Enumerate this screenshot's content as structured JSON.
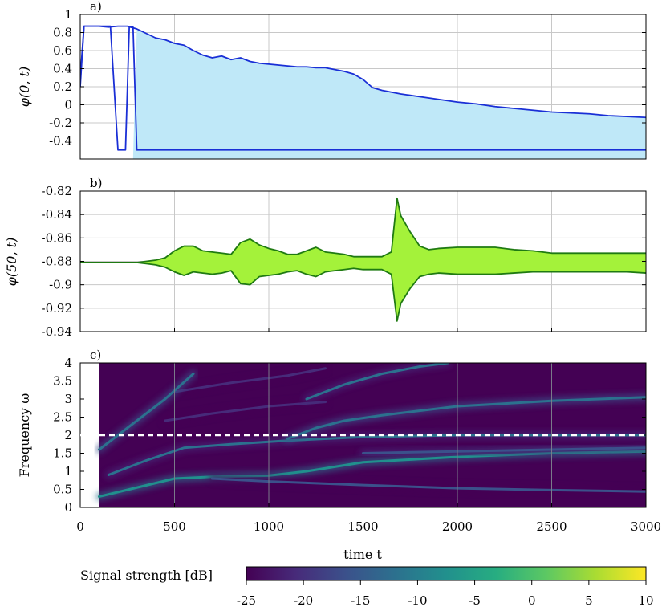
{
  "chart_data": [
    {
      "type": "area",
      "panel_label": "a)",
      "ylabel": "φ(0, t)",
      "xlim": [
        0,
        3000
      ],
      "ylim": [
        -0.5,
        1.0
      ],
      "yticks": [
        "1",
        "0.8",
        "0.6",
        "0.4",
        "0.2",
        "0",
        "-0.2",
        "-0.4"
      ],
      "ytick_values": [
        1,
        0.8,
        0.6,
        0.4,
        0.2,
        0,
        -0.2,
        -0.4
      ],
      "grid": true,
      "colors": {
        "line": "#1a2fd6",
        "fill": "#bfe8f8"
      },
      "series": [
        {
          "kind": "envelope-upper",
          "x": [
            0,
            20,
            50,
            100,
            150,
            200,
            250,
            300,
            350,
            400,
            450,
            500,
            550,
            600,
            650,
            700,
            750,
            800,
            850,
            900,
            950,
            1000,
            1050,
            1100,
            1150,
            1200,
            1250,
            1300,
            1350,
            1400,
            1450,
            1500,
            1550,
            1600,
            1700,
            1800,
            1900,
            2000,
            2100,
            2200,
            2300,
            2400,
            2500,
            2600,
            2700,
            2800,
            2900,
            3000
          ],
          "y": [
            0.3,
            0.87,
            0.87,
            0.87,
            0.86,
            0.87,
            0.87,
            0.84,
            0.79,
            0.74,
            0.72,
            0.68,
            0.66,
            0.6,
            0.55,
            0.52,
            0.54,
            0.5,
            0.52,
            0.48,
            0.46,
            0.45,
            0.44,
            0.43,
            0.42,
            0.42,
            0.41,
            0.41,
            0.39,
            0.37,
            0.34,
            0.28,
            0.19,
            0.16,
            0.12,
            0.09,
            0.06,
            0.03,
            0.01,
            -0.02,
            -0.04,
            -0.06,
            -0.08,
            -0.09,
            -0.1,
            -0.12,
            -0.13,
            -0.14
          ]
        },
        {
          "kind": "envelope-lower",
          "x": [
            0,
            20,
            60,
            160,
            200,
            240,
            260,
            280,
            300,
            3000
          ],
          "y": [
            0.2,
            0.87,
            0.87,
            0.87,
            -0.5,
            -0.5,
            0.86,
            0.86,
            -0.5,
            -0.5
          ]
        }
      ]
    },
    {
      "type": "area",
      "panel_label": "b)",
      "ylabel": "φ(50, t)",
      "xlim": [
        0,
        3000
      ],
      "ylim": [
        -0.94,
        -0.82
      ],
      "yticks": [
        "-0.82",
        "-0.84",
        "-0.86",
        "-0.88",
        "-0.9",
        "-0.92",
        "-0.94"
      ],
      "ytick_values": [
        -0.82,
        -0.84,
        -0.86,
        -0.88,
        -0.9,
        -0.92,
        -0.94
      ],
      "grid": true,
      "colors": {
        "line": "#1f7a12",
        "fill": "#a4f23a"
      },
      "series": [
        {
          "kind": "envelope-upper",
          "x": [
            0,
            300,
            350,
            400,
            450,
            500,
            550,
            600,
            650,
            700,
            750,
            800,
            850,
            900,
            950,
            1000,
            1050,
            1100,
            1150,
            1200,
            1250,
            1300,
            1350,
            1400,
            1450,
            1500,
            1550,
            1600,
            1650,
            1680,
            1700,
            1750,
            1800,
            1850,
            1900,
            2000,
            2100,
            2200,
            2300,
            2400,
            2500,
            2600,
            2700,
            2800,
            2900,
            3000
          ],
          "y": [
            -0.881,
            -0.881,
            -0.88,
            -0.879,
            -0.877,
            -0.871,
            -0.867,
            -0.867,
            -0.871,
            -0.872,
            -0.873,
            -0.874,
            -0.864,
            -0.861,
            -0.866,
            -0.869,
            -0.871,
            -0.874,
            -0.874,
            -0.871,
            -0.868,
            -0.872,
            -0.873,
            -0.874,
            -0.876,
            -0.876,
            -0.876,
            -0.876,
            -0.872,
            -0.826,
            -0.841,
            -0.855,
            -0.867,
            -0.87,
            -0.869,
            -0.868,
            -0.868,
            -0.868,
            -0.87,
            -0.871,
            -0.873,
            -0.873,
            -0.873,
            -0.873,
            -0.873,
            -0.873
          ]
        },
        {
          "kind": "envelope-lower",
          "x": [
            0,
            300,
            350,
            400,
            450,
            500,
            550,
            600,
            650,
            700,
            750,
            800,
            850,
            900,
            950,
            1000,
            1050,
            1100,
            1150,
            1200,
            1250,
            1300,
            1350,
            1400,
            1450,
            1500,
            1550,
            1600,
            1650,
            1680,
            1700,
            1750,
            1800,
            1850,
            1900,
            2000,
            2100,
            2200,
            2300,
            2400,
            2500,
            2600,
            2700,
            2800,
            2900,
            3000
          ],
          "y": [
            -0.881,
            -0.881,
            -0.882,
            -0.883,
            -0.885,
            -0.889,
            -0.892,
            -0.889,
            -0.89,
            -0.891,
            -0.89,
            -0.888,
            -0.899,
            -0.9,
            -0.893,
            -0.892,
            -0.891,
            -0.889,
            -0.888,
            -0.891,
            -0.893,
            -0.889,
            -0.888,
            -0.887,
            -0.886,
            -0.887,
            -0.887,
            -0.887,
            -0.891,
            -0.931,
            -0.916,
            -0.903,
            -0.893,
            -0.891,
            -0.89,
            -0.891,
            -0.891,
            -0.891,
            -0.89,
            -0.889,
            -0.889,
            -0.889,
            -0.889,
            -0.889,
            -0.889,
            -0.89
          ]
        }
      ]
    },
    {
      "type": "heatmap",
      "panel_label": "c)",
      "xlabel": "time t",
      "ylabel": "Frequency ω",
      "xlim": [
        0,
        3000
      ],
      "ylim": [
        0,
        4
      ],
      "xticks": [
        "0",
        "500",
        "1000",
        "1500",
        "2000",
        "2500",
        "3000"
      ],
      "xtick_values": [
        0,
        500,
        1000,
        1500,
        2000,
        2500,
        3000
      ],
      "yticks": [
        "4",
        "3.5",
        "3",
        "2.5",
        "2",
        "1.5",
        "1",
        "0.5",
        "0"
      ],
      "ytick_values": [
        4,
        3.5,
        3,
        2.5,
        2,
        1.5,
        1,
        0.5,
        0
      ],
      "data_start_x": 100,
      "reference_line": {
        "y": 2.0,
        "style": "dashed",
        "color": "#ffffff"
      },
      "background_level_db": -25,
      "ridges": [
        {
          "x": [
            100,
            300,
            500,
            700,
            1000,
            1200,
            1500,
            2000,
            2500,
            3000
          ],
          "y": [
            0.3,
            0.55,
            0.8,
            0.85,
            0.88,
            1.0,
            1.25,
            1.4,
            1.5,
            1.55
          ],
          "db": -7
        },
        {
          "x": [
            700,
            1000,
            1500,
            2000,
            2500,
            3000
          ],
          "y": [
            0.8,
            0.72,
            0.62,
            0.53,
            0.48,
            0.44
          ],
          "db": -18
        },
        {
          "x": [
            150,
            350,
            550,
            800,
            1100,
            1500,
            2000,
            2500,
            3000
          ],
          "y": [
            0.9,
            1.3,
            1.65,
            1.75,
            1.85,
            1.95,
            2.0,
            2.0,
            2.0
          ],
          "db": -14
        },
        {
          "x": [
            1100,
            1250,
            1400,
            1600,
            2000,
            2500,
            3000
          ],
          "y": [
            1.9,
            2.2,
            2.4,
            2.55,
            2.8,
            2.95,
            3.05
          ],
          "db": -11
        },
        {
          "x": [
            450,
            700,
            1000,
            1300
          ],
          "y": [
            2.4,
            2.6,
            2.8,
            2.92
          ],
          "db": -19
        },
        {
          "x": [
            1200,
            1400,
            1600,
            1800,
            1950
          ],
          "y": [
            3.0,
            3.4,
            3.7,
            3.9,
            4.0
          ],
          "db": -13
        },
        {
          "x": [
            500,
            800,
            1100,
            1300
          ],
          "y": [
            3.2,
            3.45,
            3.65,
            3.85
          ],
          "db": -19
        },
        {
          "x": [
            1500,
            2000,
            2500,
            3000
          ],
          "y": [
            1.5,
            1.55,
            1.6,
            1.65
          ],
          "db": -16
        },
        {
          "x": [
            100,
            250,
            450,
            600
          ],
          "y": [
            1.6,
            2.2,
            3.0,
            3.7
          ],
          "db": -12
        }
      ],
      "colorbar": {
        "label": "Signal strength [dB]",
        "ticks": [
          "-25",
          "-20",
          "-15",
          "-10",
          "-5",
          "0",
          "5",
          "10"
        ],
        "tick_values": [
          -25,
          -20,
          -15,
          -10,
          -5,
          0,
          5,
          10
        ],
        "range": [
          -25,
          10
        ],
        "colormap": "viridis",
        "colors": [
          "#440154",
          "#472b7a",
          "#3b518b",
          "#2c718e",
          "#21908d",
          "#27ad81",
          "#5cc863",
          "#aadc32",
          "#fde725"
        ]
      }
    }
  ]
}
